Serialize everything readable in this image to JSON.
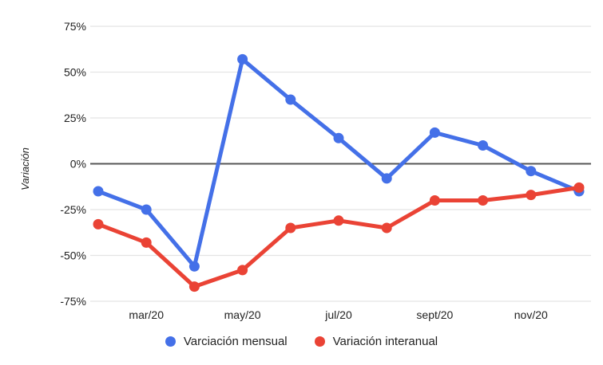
{
  "chart_data": {
    "type": "line",
    "title": "",
    "xlabel": "",
    "ylabel": "Variación",
    "points_per_series": 11,
    "x_ticks": [
      {
        "index": 1,
        "label": "mar/20"
      },
      {
        "index": 3,
        "label": "may/20"
      },
      {
        "index": 5,
        "label": "jul/20"
      },
      {
        "index": 7,
        "label": "sept/20"
      },
      {
        "index": 9,
        "label": "nov/20"
      }
    ],
    "y_ticks": [
      {
        "label": "75%",
        "value": 75
      },
      {
        "label": "50%",
        "value": 50
      },
      {
        "label": "25%",
        "value": 25
      },
      {
        "label": "0%",
        "value": 0
      },
      {
        "label": "-25%",
        "value": -25
      },
      {
        "label": "-50%",
        "value": -50
      },
      {
        "label": "-75%",
        "value": -75
      }
    ],
    "ylim": [
      -80,
      85
    ],
    "grid": true,
    "zero_line": true,
    "legend_position": "bottom",
    "series": [
      {
        "name": "Varciación mensual",
        "color": "#4470e8",
        "values": [
          -15,
          -25,
          -56,
          57,
          35,
          14,
          -8,
          17,
          10,
          -4,
          -15
        ]
      },
      {
        "name": "Variación interanual",
        "color": "#ea4335",
        "values": [
          -33,
          -43,
          -67,
          -58,
          -35,
          -31,
          -35,
          -20,
          -20,
          -17,
          -13
        ]
      }
    ],
    "colors": {
      "grid": "#e4e4e4",
      "zero_line": "#555555",
      "tick_text": "#222222",
      "axis_title_text": "#222222"
    }
  }
}
